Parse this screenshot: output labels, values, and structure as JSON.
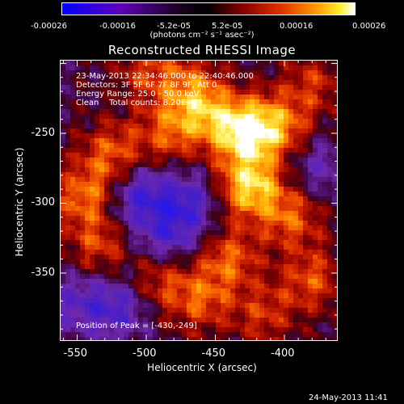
{
  "colorbar": {
    "ticks": [
      "-0.00026",
      "-0.00016",
      "-5.2e-05",
      "5.2e-05",
      "0.00016",
      "0.00026"
    ],
    "units": "(photons cm⁻² s⁻¹ asec⁻²)",
    "range": [
      -0.00026,
      0.00026
    ],
    "colors": [
      "#0000ff",
      "#5500cc",
      "#000000",
      "#6a0000",
      "#d41800",
      "#ff8a00",
      "#ffe000",
      "#ffffff"
    ]
  },
  "chart_data": {
    "type": "heatmap",
    "title": "Reconstructed RHESSI Image",
    "xlabel": "Heliocentric X (arcsec)",
    "ylabel": "Heliocentric Y (arcsec)",
    "xlim": [
      -562,
      -362
    ],
    "ylim": [
      -398,
      -198
    ],
    "xticks": [
      -550,
      -500,
      -450,
      -400
    ],
    "yticks": [
      -250,
      -300,
      -350
    ],
    "info_lines": [
      "23-May-2013 22:34:46.000 to 22:40:46.000",
      "Detectors: 3F 5F 6F 7F 8F 9F, Att 0",
      "Energy Range: 25.0 - 50.0 keV",
      "Clean    Total counts: 8.20E+03"
    ],
    "peak_label": "Position of Peak = [-430,-249]",
    "peak": [
      -430,
      -249
    ],
    "sources": [
      {
        "x": -430,
        "y": -249,
        "intensity": 1.0
      },
      {
        "x": -425,
        "y": -288,
        "intensity": 0.95
      },
      {
        "x": -458,
        "y": -235,
        "intensity": 0.6
      },
      {
        "x": -405,
        "y": -245,
        "intensity": 0.65
      },
      {
        "x": -395,
        "y": -310,
        "intensity": 0.55
      },
      {
        "x": -380,
        "y": -355,
        "intensity": 0.5
      },
      {
        "x": -525,
        "y": -265,
        "intensity": 0.55
      },
      {
        "x": -545,
        "y": -295,
        "intensity": 0.6
      },
      {
        "x": -535,
        "y": -330,
        "intensity": 0.45
      },
      {
        "x": -485,
        "y": -250,
        "intensity": 0.5
      },
      {
        "x": -470,
        "y": -215,
        "intensity": 0.45
      },
      {
        "x": -500,
        "y": -205,
        "intensity": 0.4
      },
      {
        "x": -440,
        "y": -340,
        "intensity": 0.55
      },
      {
        "x": -460,
        "y": -370,
        "intensity": 0.5
      },
      {
        "x": -490,
        "y": -355,
        "intensity": 0.45
      },
      {
        "x": -415,
        "y": -380,
        "intensity": 0.4
      },
      {
        "x": -380,
        "y": -215,
        "intensity": 0.4
      },
      {
        "x": -505,
        "y": -295,
        "intensity": -0.6
      },
      {
        "x": -520,
        "y": -375,
        "intensity": -0.5
      },
      {
        "x": -470,
        "y": -300,
        "intensity": -0.55
      },
      {
        "x": -550,
        "y": -370,
        "intensity": -0.4
      },
      {
        "x": -485,
        "y": -325,
        "intensity": -0.45
      },
      {
        "x": -375,
        "y": -275,
        "intensity": -0.35
      }
    ]
  },
  "timestamp": "24-May-2013 11:41"
}
